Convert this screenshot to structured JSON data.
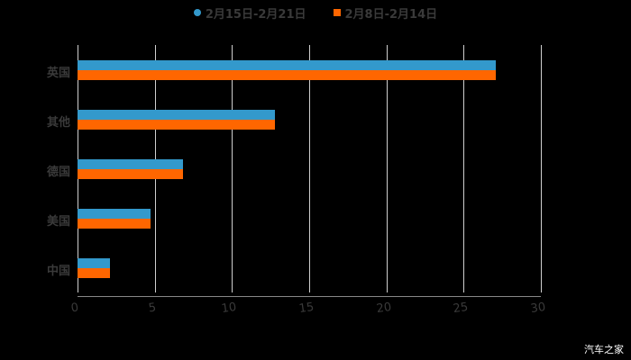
{
  "legend": [
    {
      "label": "2月15日-2月21日",
      "color": "#3399cc",
      "marker": "circle"
    },
    {
      "label": "2月8日-2月14日",
      "color": "#ff6600",
      "marker": "square"
    }
  ],
  "watermark": "汽车之家",
  "chart_data": {
    "type": "bar",
    "orientation": "horizontal",
    "title": "",
    "xlabel": "",
    "ylabel": "",
    "categories": [
      "英国",
      "其他",
      "德国",
      "美国",
      "中国"
    ],
    "series": [
      {
        "name": "2月15日-2月21日",
        "color": "#3399cc",
        "values": [
          27.1,
          12.8,
          6.8,
          4.7,
          2.1
        ]
      },
      {
        "name": "2月8日-2月14日",
        "color": "#ff6600",
        "values": [
          27.1,
          12.8,
          6.8,
          4.7,
          2.1
        ]
      }
    ],
    "xlim": [
      0,
      30
    ],
    "xticks": [
      "0",
      "5",
      "10",
      "15",
      "20",
      "25",
      "30"
    ],
    "grid": true,
    "legend_position": "top"
  }
}
